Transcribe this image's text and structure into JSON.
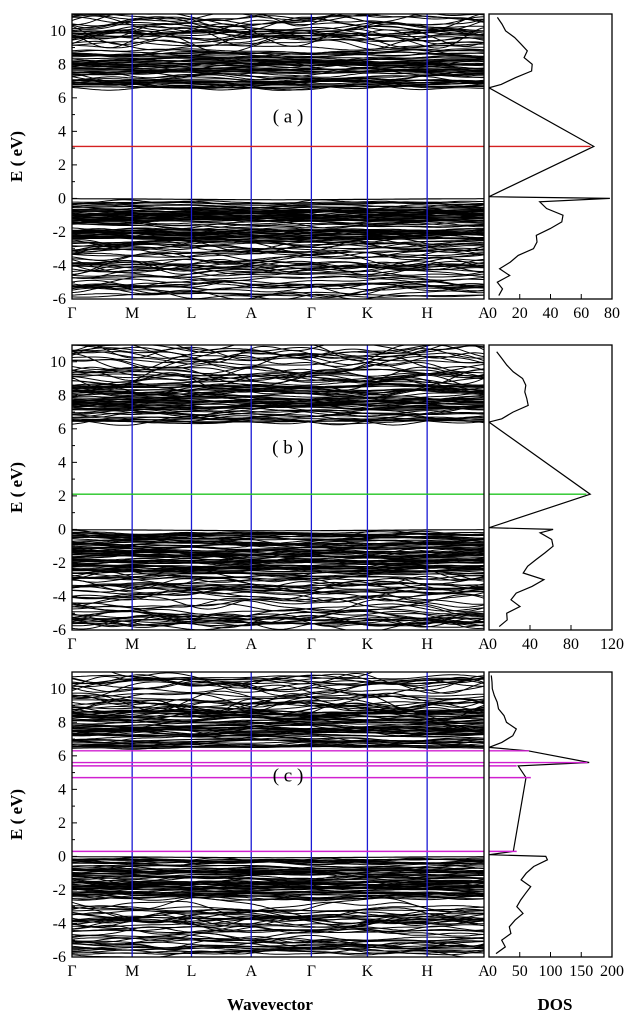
{
  "figure": {
    "xlabel": "Wavevector",
    "dos_label": "DOS",
    "ylabel": "E ( eV)"
  },
  "chart_data": [
    {
      "type": "line",
      "panel": "( a )",
      "ylabel": "E ( eV)",
      "ylim": [
        -6,
        11
      ],
      "yticks": [
        -6,
        -4,
        -2,
        0,
        2,
        4,
        6,
        8,
        10
      ],
      "kpoints": [
        "Γ",
        "M",
        "L",
        "A",
        "Γ",
        "K",
        "H",
        "A"
      ],
      "defect_level_color": "#d42020",
      "defect_levels": [
        3.1
      ],
      "valence_band": [
        -5.8,
        0
      ],
      "conduction_band": [
        6.6,
        11
      ],
      "dos": {
        "xlim": [
          0,
          80
        ],
        "xticks": [
          0,
          20,
          40,
          60,
          80
        ],
        "profile": [
          [
            -5.8,
            6
          ],
          [
            -5.4,
            10
          ],
          [
            -5.0,
            5
          ],
          [
            -4.6,
            12
          ],
          [
            -4.2,
            7
          ],
          [
            -3.8,
            13
          ],
          [
            -3.4,
            18
          ],
          [
            -3.0,
            26
          ],
          [
            -2.6,
            30
          ],
          [
            -2.2,
            34
          ],
          [
            -1.8,
            42
          ],
          [
            -1.4,
            50
          ],
          [
            -1.0,
            44
          ],
          [
            -0.6,
            38
          ],
          [
            -0.2,
            36
          ],
          [
            0.0,
            70
          ],
          [
            0.1,
            0
          ],
          [
            3.1,
            66
          ],
          [
            6.6,
            0
          ],
          [
            6.8,
            8
          ],
          [
            7.2,
            18
          ],
          [
            7.6,
            28
          ],
          [
            8.0,
            26
          ],
          [
            8.4,
            22
          ],
          [
            8.8,
            24
          ],
          [
            9.2,
            20
          ],
          [
            9.6,
            16
          ],
          [
            10.0,
            12
          ],
          [
            10.4,
            9
          ],
          [
            10.8,
            6
          ]
        ]
      }
    },
    {
      "type": "line",
      "panel": "( b )",
      "ylabel": "E ( eV)",
      "ylim": [
        -6,
        11
      ],
      "yticks": [
        -6,
        -4,
        -2,
        0,
        2,
        4,
        6,
        8,
        10
      ],
      "kpoints": [
        "Γ",
        "M",
        "L",
        "A",
        "Γ",
        "K",
        "H",
        "A"
      ],
      "defect_level_color": "#22c422",
      "defect_levels": [
        2.1
      ],
      "valence_band": [
        -5.8,
        0
      ],
      "conduction_band": [
        6.4,
        11
      ],
      "dos": {
        "xlim": [
          0,
          120
        ],
        "xticks": [
          0,
          40,
          80,
          120
        ],
        "profile": [
          [
            -5.8,
            10
          ],
          [
            -5.4,
            20
          ],
          [
            -5.0,
            18
          ],
          [
            -4.6,
            28
          ],
          [
            -4.2,
            22
          ],
          [
            -3.8,
            30
          ],
          [
            -3.4,
            40
          ],
          [
            -3.0,
            48
          ],
          [
            -2.6,
            34
          ],
          [
            -2.2,
            40
          ],
          [
            -1.8,
            50
          ],
          [
            -1.4,
            56
          ],
          [
            -1.0,
            62
          ],
          [
            -0.6,
            58
          ],
          [
            -0.2,
            54
          ],
          [
            0.0,
            56
          ],
          [
            0.1,
            0
          ],
          [
            2.1,
            95
          ],
          [
            6.4,
            0
          ],
          [
            6.6,
            12
          ],
          [
            7.0,
            24
          ],
          [
            7.4,
            36
          ],
          [
            7.8,
            38
          ],
          [
            8.2,
            32
          ],
          [
            8.6,
            34
          ],
          [
            9.0,
            30
          ],
          [
            9.4,
            22
          ],
          [
            9.8,
            16
          ],
          [
            10.2,
            12
          ],
          [
            10.6,
            8
          ]
        ]
      }
    },
    {
      "type": "line",
      "panel": "( c )",
      "ylabel": "E ( eV)",
      "ylim": [
        -6,
        11
      ],
      "yticks": [
        -6,
        -4,
        -2,
        0,
        2,
        4,
        6,
        8,
        10
      ],
      "kpoints": [
        "Γ",
        "M",
        "L",
        "A",
        "Γ",
        "K",
        "H",
        "A"
      ],
      "defect_level_color": "#d020d0",
      "defect_levels": [
        0.3,
        4.7,
        5.4,
        5.6,
        6.3
      ],
      "valence_band": [
        -5.8,
        0
      ],
      "conduction_band": [
        6.5,
        11
      ],
      "dos": {
        "xlim": [
          0,
          200
        ],
        "xticks": [
          0,
          50,
          100,
          150,
          200
        ],
        "profile": [
          [
            -5.8,
            12
          ],
          [
            -5.4,
            30
          ],
          [
            -5.0,
            22
          ],
          [
            -4.6,
            36
          ],
          [
            -4.2,
            30
          ],
          [
            -3.8,
            44
          ],
          [
            -3.4,
            56
          ],
          [
            -3.0,
            50
          ],
          [
            -2.6,
            46
          ],
          [
            -2.2,
            60
          ],
          [
            -1.8,
            64
          ],
          [
            -1.4,
            58
          ],
          [
            -1.0,
            60
          ],
          [
            -0.6,
            70
          ],
          [
            -0.2,
            100
          ],
          [
            0.0,
            90
          ],
          [
            0.1,
            0
          ],
          [
            0.3,
            45
          ],
          [
            4.7,
            68
          ],
          [
            5.4,
            45
          ],
          [
            5.6,
            160
          ],
          [
            6.3,
            65
          ],
          [
            6.5,
            0
          ],
          [
            6.8,
            20
          ],
          [
            7.2,
            36
          ],
          [
            7.6,
            40
          ],
          [
            8.0,
            30
          ],
          [
            8.4,
            26
          ],
          [
            8.8,
            16
          ],
          [
            9.2,
            12
          ],
          [
            9.6,
            8
          ],
          [
            10.0,
            6
          ],
          [
            10.4,
            5
          ],
          [
            10.8,
            4
          ]
        ]
      }
    }
  ]
}
